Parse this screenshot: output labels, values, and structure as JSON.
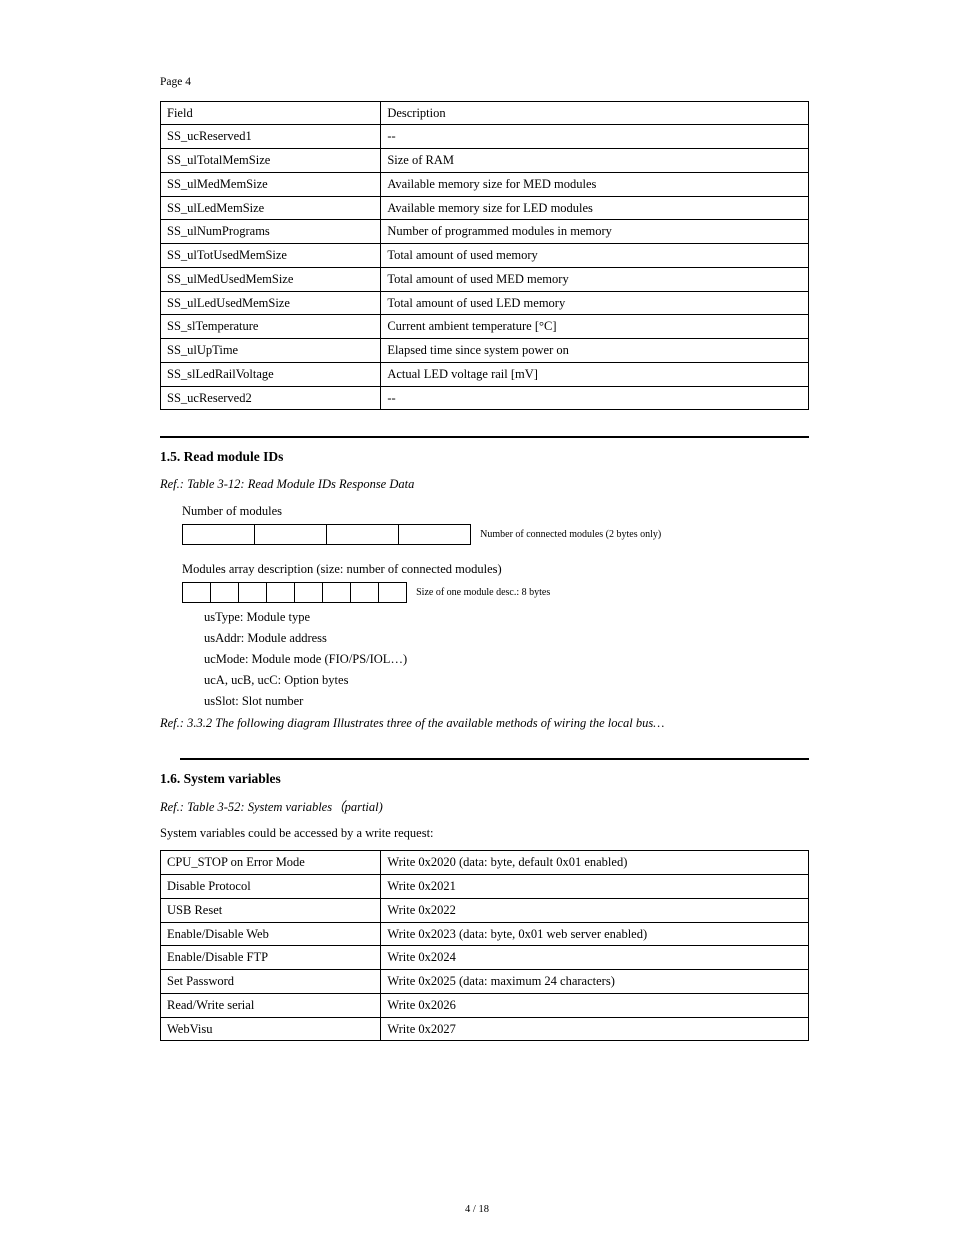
{
  "page_header": "Page 4",
  "table1": {
    "col_width_left_pct": 34,
    "rows": [
      [
        "Field",
        "Description"
      ],
      [
        "SS_ucReserved1",
        "--"
      ],
      [
        "SS_ulTotalMemSize",
        "Size of RAM"
      ],
      [
        "SS_ulMedMemSize",
        "Available memory size for MED modules"
      ],
      [
        "SS_ulLedMemSize",
        "Available memory size for LED modules"
      ],
      [
        "SS_ulNumPrograms",
        "Number of programmed modules in memory"
      ],
      [
        "SS_ulTotUsedMemSize",
        "Total amount of used memory"
      ],
      [
        "SS_ulMedUsedMemSize",
        "Total amount of used MED memory"
      ],
      [
        "SS_ulLedUsedMemSize",
        "Total amount of used LED memory"
      ],
      [
        "SS_slTemperature",
        "Current ambient temperature [°C]"
      ],
      [
        "SS_ulUpTime",
        "Elapsed time since system power on"
      ],
      [
        "SS_slLedRailVoltage",
        "Actual LED voltage rail [mV]"
      ],
      [
        "SS_ucReserved2",
        "--"
      ]
    ]
  },
  "section1": {
    "title": "1.5.  Read module IDs",
    "ref": "Ref.:  Table  3-12:  Read  Module  IDs  Response  Data",
    "num_modules_label": "Number of modules",
    "num_modules_boxes": 4,
    "num_modules_note": "Number  of  connected  modules  (2  bytes  only)",
    "modules_array_label": "Modules array description (size: number of  connected modules)",
    "module_boxes": 8,
    "module_note": "Size  of  one  module  desc.:  8  bytes",
    "fields": [
      "usType: Module type",
      "usAddr: Module address",
      "ucMode: Module mode (FIO/PS/IOL…)",
      "ucA, ucB, ucC: Option bytes",
      "usSlot: Slot number"
    ],
    "ref_note": "Ref.:  3.3.2  The  following  diagram  Illustrates  three  of  the  available  methods  of  wiring  the local bus…"
  },
  "section2": {
    "title": "1.6.  System variables",
    "ref": "Ref.:  Table  3-52:  System  variables（partial)",
    "subhead": "System variables could be accessed by a write request:"
  },
  "table2": {
    "col_width_left_pct": 34,
    "rows": [
      [
        "CPU_STOP on Error Mode",
        "Write 0x2020 (data: byte, default 0x01 enabled)"
      ],
      [
        "Disable Protocol",
        "Write 0x2021"
      ],
      [
        "USB Reset",
        "Write 0x2022"
      ],
      [
        "Enable/Disable Web",
        "Write 0x2023 (data: byte, 0x01 web server enabled)"
      ],
      [
        "Enable/Disable FTP",
        "Write 0x2024"
      ],
      [
        "Set Password",
        "Write 0x2025 (data: maximum 24 characters)"
      ],
      [
        "Read/Write serial",
        "Write 0x2026"
      ],
      [
        "WebVisu",
        "Write 0x2027"
      ]
    ]
  },
  "footer": "4  /  18"
}
